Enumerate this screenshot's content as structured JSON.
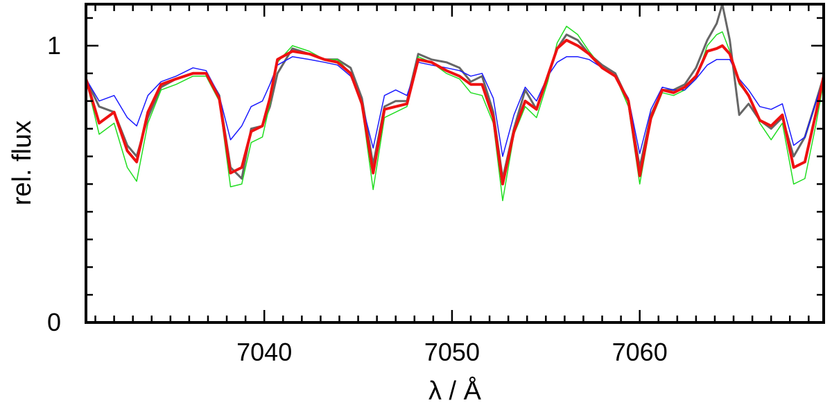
{
  "chart_data": {
    "type": "line",
    "title": "",
    "xlabel": "λ / Å",
    "ylabel": "rel. flux",
    "xlim": [
      7030.5,
      7069.8
    ],
    "ylim": [
      0,
      1.15
    ],
    "x_ticks": [
      7040,
      7050,
      7060
    ],
    "x_minor_step": 1,
    "y_ticks": [
      0,
      1
    ],
    "y_minor_step": 0.1,
    "grid": false,
    "legend": "none",
    "series": [
      {
        "color": "#666666",
        "width": 3,
        "x": [
          7030.5,
          7031.2,
          7032.0,
          7032.7,
          7033.2,
          7033.8,
          7034.5,
          7035.3,
          7036.2,
          7036.9,
          7037.6,
          7038.2,
          7038.8,
          7039.3,
          7039.9,
          7040.3,
          7040.7,
          7041.5,
          7042.4,
          7043.2,
          7043.9,
          7044.6,
          7045.2,
          7045.8,
          7046.4,
          7047.0,
          7047.6,
          7048.2,
          7048.9,
          7049.7,
          7050.4,
          7051.0,
          7051.6,
          7052.2,
          7052.7,
          7053.3,
          7053.9,
          7054.5,
          7055.1,
          7055.6,
          7056.1,
          7056.7,
          7057.3,
          7058.0,
          7058.7,
          7059.4,
          7060.0,
          7060.6,
          7061.2,
          7061.8,
          7062.4,
          7063.0,
          7063.6,
          7064.1,
          7064.4,
          7064.8,
          7065.3,
          7065.8,
          7066.4,
          7067.0,
          7067.6,
          7068.2,
          7068.8,
          7069.4,
          7069.8
        ],
        "y": [
          0.88,
          0.78,
          0.76,
          0.64,
          0.6,
          0.74,
          0.85,
          0.88,
          0.9,
          0.9,
          0.82,
          0.56,
          0.52,
          0.7,
          0.71,
          0.78,
          0.9,
          0.99,
          0.97,
          0.95,
          0.95,
          0.92,
          0.81,
          0.57,
          0.78,
          0.8,
          0.8,
          0.97,
          0.95,
          0.94,
          0.92,
          0.87,
          0.89,
          0.76,
          0.52,
          0.7,
          0.84,
          0.77,
          0.89,
          0.99,
          1.04,
          1.02,
          0.97,
          0.93,
          0.9,
          0.8,
          0.56,
          0.75,
          0.84,
          0.84,
          0.86,
          0.92,
          1.02,
          1.08,
          1.15,
          1.02,
          0.75,
          0.79,
          0.73,
          0.7,
          0.74,
          0.6,
          0.67,
          0.8,
          0.89
        ]
      },
      {
        "color": "#22dd22",
        "width": 1.5,
        "x": [
          7030.5,
          7031.2,
          7032.0,
          7032.7,
          7033.2,
          7033.8,
          7034.5,
          7035.3,
          7036.2,
          7036.9,
          7037.6,
          7038.2,
          7038.8,
          7039.3,
          7039.9,
          7040.3,
          7040.7,
          7041.5,
          7042.4,
          7043.2,
          7043.9,
          7044.6,
          7045.2,
          7045.8,
          7046.4,
          7047.0,
          7047.6,
          7048.2,
          7048.9,
          7049.7,
          7050.4,
          7051.0,
          7051.6,
          7052.2,
          7052.7,
          7053.3,
          7053.9,
          7054.5,
          7055.1,
          7055.6,
          7056.1,
          7056.7,
          7057.3,
          7058.0,
          7058.7,
          7059.4,
          7060.0,
          7060.6,
          7061.2,
          7061.8,
          7062.4,
          7063.0,
          7063.6,
          7064.1,
          7064.4,
          7064.8,
          7065.3,
          7065.8,
          7066.4,
          7067.0,
          7067.6,
          7068.2,
          7068.8,
          7069.4,
          7069.8
        ],
        "y": [
          0.88,
          0.68,
          0.72,
          0.56,
          0.51,
          0.72,
          0.84,
          0.86,
          0.89,
          0.89,
          0.8,
          0.49,
          0.5,
          0.65,
          0.67,
          0.79,
          0.94,
          1.0,
          0.98,
          0.95,
          0.95,
          0.9,
          0.78,
          0.48,
          0.74,
          0.76,
          0.78,
          0.96,
          0.94,
          0.9,
          0.88,
          0.83,
          0.82,
          0.72,
          0.44,
          0.68,
          0.78,
          0.74,
          0.87,
          1.01,
          1.07,
          1.04,
          0.98,
          0.92,
          0.89,
          0.78,
          0.5,
          0.73,
          0.83,
          0.82,
          0.84,
          0.88,
          1.0,
          1.04,
          1.05,
          0.98,
          0.86,
          0.82,
          0.72,
          0.66,
          0.72,
          0.5,
          0.52,
          0.72,
          0.87
        ]
      },
      {
        "color": "#1a1aff",
        "width": 1.5,
        "x": [
          7030.5,
          7031.2,
          7032.0,
          7032.7,
          7033.2,
          7033.8,
          7034.5,
          7035.3,
          7036.2,
          7036.9,
          7037.6,
          7038.2,
          7038.8,
          7039.3,
          7039.9,
          7040.3,
          7040.7,
          7041.5,
          7042.4,
          7043.2,
          7043.9,
          7044.6,
          7045.2,
          7045.8,
          7046.4,
          7047.0,
          7047.6,
          7048.2,
          7048.9,
          7049.7,
          7050.4,
          7051.0,
          7051.6,
          7052.2,
          7052.7,
          7053.3,
          7053.9,
          7054.5,
          7055.1,
          7055.6,
          7056.1,
          7056.7,
          7057.3,
          7058.0,
          7058.7,
          7059.4,
          7060.0,
          7060.6,
          7061.2,
          7061.8,
          7062.4,
          7063.0,
          7063.6,
          7064.1,
          7064.4,
          7064.8,
          7065.3,
          7065.8,
          7066.4,
          7067.0,
          7067.6,
          7068.2,
          7068.8,
          7069.4,
          7069.8
        ],
        "y": [
          0.88,
          0.8,
          0.82,
          0.74,
          0.71,
          0.82,
          0.87,
          0.89,
          0.92,
          0.91,
          0.82,
          0.66,
          0.71,
          0.78,
          0.8,
          0.86,
          0.93,
          0.96,
          0.95,
          0.94,
          0.93,
          0.89,
          0.79,
          0.63,
          0.82,
          0.84,
          0.82,
          0.94,
          0.93,
          0.92,
          0.91,
          0.89,
          0.9,
          0.81,
          0.6,
          0.75,
          0.85,
          0.8,
          0.89,
          0.94,
          0.96,
          0.96,
          0.95,
          0.92,
          0.89,
          0.81,
          0.61,
          0.77,
          0.85,
          0.84,
          0.84,
          0.88,
          0.93,
          0.95,
          0.95,
          0.95,
          0.88,
          0.84,
          0.78,
          0.77,
          0.79,
          0.64,
          0.67,
          0.8,
          0.88
        ]
      },
      {
        "color": "#ee1111",
        "width": 4,
        "x": [
          7030.5,
          7031.2,
          7032.0,
          7032.7,
          7033.2,
          7033.8,
          7034.5,
          7035.3,
          7036.2,
          7036.9,
          7037.6,
          7038.2,
          7038.8,
          7039.3,
          7039.9,
          7040.3,
          7040.7,
          7041.5,
          7042.4,
          7043.2,
          7043.9,
          7044.6,
          7045.2,
          7045.8,
          7046.4,
          7047.0,
          7047.6,
          7048.2,
          7048.9,
          7049.7,
          7050.4,
          7051.0,
          7051.6,
          7052.2,
          7052.7,
          7053.3,
          7053.9,
          7054.5,
          7055.1,
          7055.6,
          7056.1,
          7056.7,
          7057.3,
          7058.0,
          7058.7,
          7059.4,
          7060.0,
          7060.6,
          7061.2,
          7061.8,
          7062.4,
          7063.0,
          7063.6,
          7064.1,
          7064.4,
          7064.8,
          7065.3,
          7065.8,
          7066.4,
          7067.0,
          7067.6,
          7068.2,
          7068.8,
          7069.4,
          7069.8
        ],
        "y": [
          0.88,
          0.72,
          0.76,
          0.62,
          0.58,
          0.76,
          0.86,
          0.88,
          0.9,
          0.9,
          0.81,
          0.54,
          0.56,
          0.69,
          0.71,
          0.81,
          0.95,
          0.98,
          0.97,
          0.95,
          0.94,
          0.9,
          0.79,
          0.54,
          0.77,
          0.78,
          0.79,
          0.95,
          0.94,
          0.91,
          0.89,
          0.86,
          0.86,
          0.74,
          0.5,
          0.69,
          0.8,
          0.77,
          0.89,
          0.99,
          1.02,
          1.0,
          0.97,
          0.92,
          0.89,
          0.8,
          0.53,
          0.74,
          0.84,
          0.83,
          0.85,
          0.89,
          0.98,
          0.99,
          1.0,
          0.97,
          0.87,
          0.82,
          0.73,
          0.71,
          0.75,
          0.56,
          0.58,
          0.76,
          0.89
        ]
      }
    ]
  }
}
